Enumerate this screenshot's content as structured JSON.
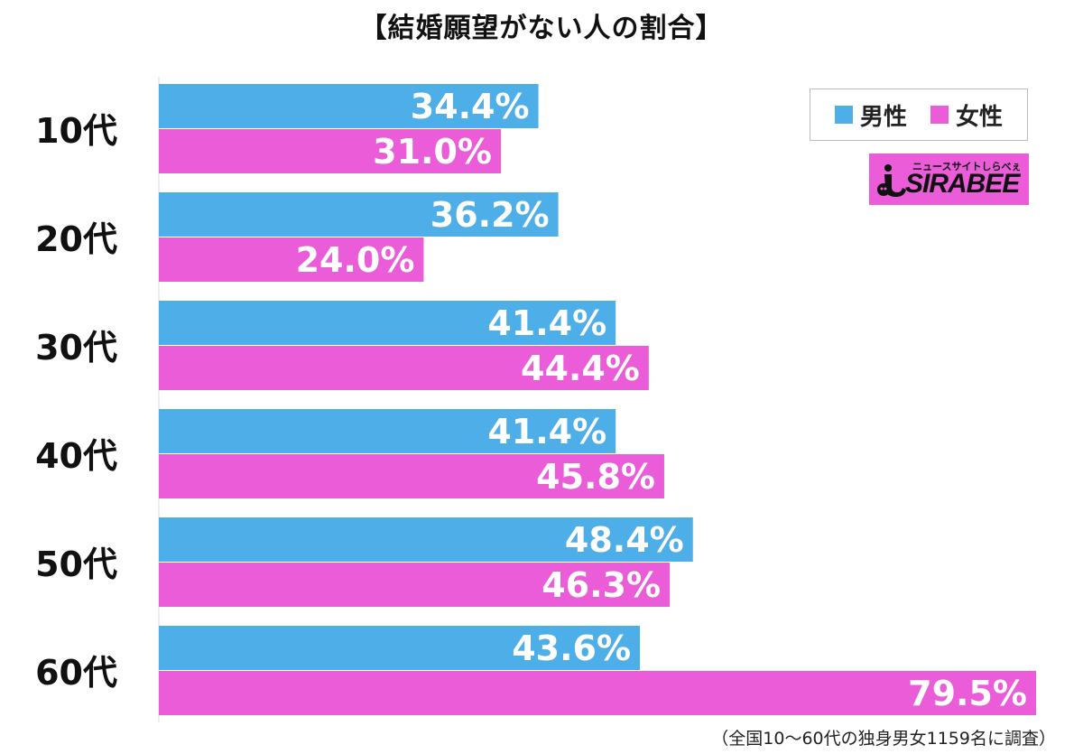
{
  "title": "【結婚願望がない人の割合】",
  "legend": {
    "male": "男性",
    "female": "女性"
  },
  "colors": {
    "male": "#4daee8",
    "female": "#ea5cd8",
    "label_text": "#ffffff",
    "category_text": "#111111"
  },
  "logo": {
    "tagline": "ニュースサイトしらべぇ",
    "name": "SIRABEE"
  },
  "footnote": "（全国10〜60代の独身男女1159名に調査）",
  "chart_data": {
    "type": "bar",
    "orientation": "horizontal",
    "title": "【結婚願望がない人の割合】",
    "categories": [
      "10代",
      "20代",
      "30代",
      "40代",
      "50代",
      "60代"
    ],
    "series": [
      {
        "name": "男性",
        "values": [
          34.4,
          36.2,
          41.4,
          41.4,
          48.4,
          43.6
        ],
        "labels": [
          "34.4%",
          "36.2%",
          "41.4%",
          "41.4%",
          "48.4%",
          "43.6%"
        ]
      },
      {
        "name": "女性",
        "values": [
          31.0,
          24.0,
          44.4,
          45.8,
          46.3,
          79.5
        ],
        "labels": [
          "31.0%",
          "24.0%",
          "44.4%",
          "45.8%",
          "46.3%",
          "79.5%"
        ]
      }
    ],
    "xlim": [
      0,
      80
    ],
    "unit": "%",
    "legend_position": "top-right"
  }
}
